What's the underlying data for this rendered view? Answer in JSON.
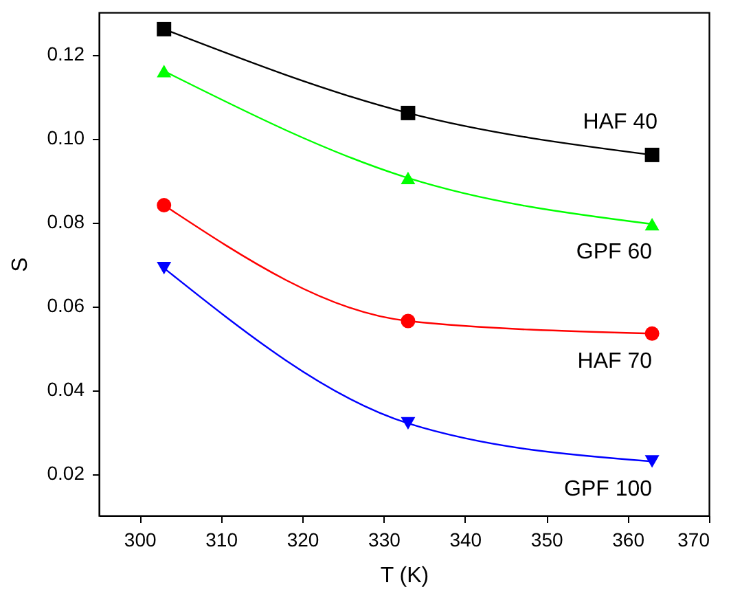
{
  "chart_data": {
    "type": "line",
    "xlabel": "T (K)",
    "ylabel": "S",
    "x": [
      303,
      333,
      363
    ],
    "series": [
      {
        "name": "HAF 40",
        "color": "#000000",
        "marker": "square",
        "values": [
          0.126,
          0.106,
          0.096
        ]
      },
      {
        "name": "GPF 60",
        "color": "#00ff00",
        "marker": "triangle",
        "values": [
          0.116,
          0.0905,
          0.0795
        ]
      },
      {
        "name": "HAF 70",
        "color": "#ff0000",
        "marker": "circle",
        "values": [
          0.084,
          0.0564,
          0.0534
        ]
      },
      {
        "name": "GPF 100",
        "color": "#0000ff",
        "marker": "triangle-down",
        "values": [
          0.069,
          0.032,
          0.0229
        ]
      }
    ],
    "xlim": [
      295,
      370
    ],
    "xticks": [
      300,
      310,
      320,
      330,
      340,
      350,
      360,
      370
    ],
    "ylim": [
      0.01,
      0.13
    ],
    "yticks": [
      0.02,
      0.04,
      0.06,
      0.08,
      {
        "value": 0.1,
        "label": "0.10"
      },
      0.12
    ],
    "grid": false,
    "line_style": "solid"
  }
}
